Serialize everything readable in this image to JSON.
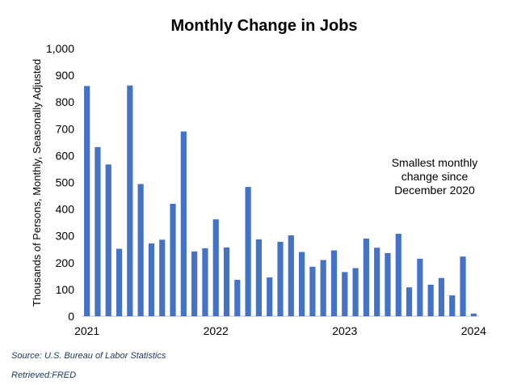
{
  "chart_data": {
    "type": "bar",
    "title": "Monthly Change in Jobs",
    "ylabel": "Thousands of Persons, Monthly, Seasonally Adjusted",
    "xlabel": "",
    "ylim": [
      0,
      1000
    ],
    "yticks": [
      "0",
      "100",
      "200",
      "300",
      "400",
      "500",
      "600",
      "700",
      "800",
      "900",
      "1,000"
    ],
    "x_tick_labels": [
      {
        "label": "2021",
        "index": 0
      },
      {
        "label": "2022",
        "index": 12
      },
      {
        "label": "2023",
        "index": 24
      },
      {
        "label": "2024",
        "index": 36
      }
    ],
    "categories": [
      "Jan 2021",
      "Feb 2021",
      "Mar 2021",
      "Apr 2021",
      "May 2021",
      "Jun 2021",
      "Jul 2021",
      "Aug 2021",
      "Sep 2021",
      "Oct 2021",
      "Nov 2021",
      "Dec 2021",
      "Jan 2022",
      "Feb 2022",
      "Mar 2022",
      "Apr 2022",
      "May 2022",
      "Jun 2022",
      "Jul 2022",
      "Aug 2022",
      "Sep 2022",
      "Oct 2022",
      "Nov 2022",
      "Dec 2022",
      "Jan 2023",
      "Feb 2023",
      "Mar 2023",
      "Apr 2023",
      "May 2023",
      "Jun 2023",
      "Jul 2023",
      "Aug 2023",
      "Sep 2023",
      "Oct 2023",
      "Nov 2023",
      "Dec 2023",
      "Jan 2024"
    ],
    "values": [
      860,
      632,
      567,
      252,
      862,
      494,
      272,
      286,
      420,
      690,
      242,
      254,
      362,
      257,
      136,
      483,
      287,
      145,
      278,
      302,
      240,
      185,
      210,
      246,
      165,
      180,
      290,
      256,
      236,
      308,
      108,
      215,
      118,
      143,
      78,
      223,
      10
    ],
    "bar_color": "#4472c4",
    "annotation": [
      "Smallest monthly",
      "change since",
      "December 2020"
    ],
    "grid": false
  },
  "footer": {
    "source": "Source: U.S. Bureau of Labor Statistics",
    "retrieved": "Retrieved:FRED"
  }
}
